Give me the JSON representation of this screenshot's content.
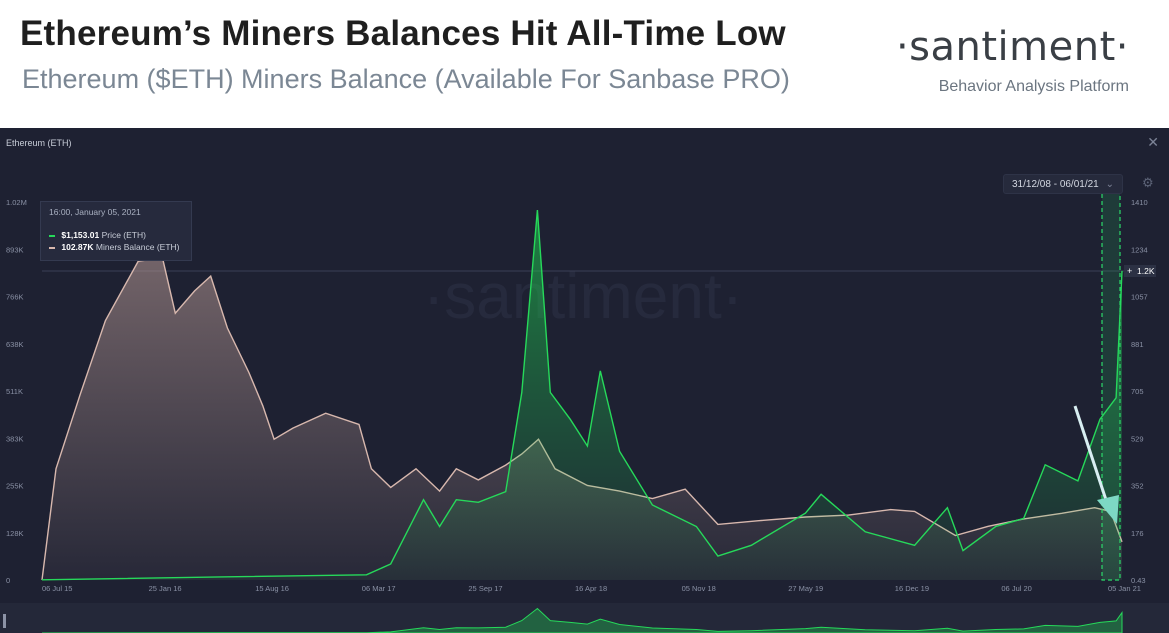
{
  "header": {
    "title": "Ethereum’s Miners Balances Hit All-Time Low",
    "subtitle": "Ethereum ($ETH) Miners Balance (Available For Sanbase PRO)",
    "brand": "·santiment·",
    "brand_tagline": "Behavior Analysis Platform"
  },
  "panel": {
    "title": "Ethereum (ETH)",
    "date_range": "31/12/08 - 06/01/21",
    "watermark": "·santiment·",
    "price_tag": "1.2K"
  },
  "tooltip": {
    "date": "16:00, January 05, 2021",
    "price_value": "$1,153.01",
    "price_label": "Price (ETH)",
    "balance_value": "102.87K",
    "balance_label": "Miners Balance (ETH)"
  },
  "colors": {
    "price": "#26d95a",
    "balance": "#d8b8ae",
    "background": "#1e2132",
    "highlight": "#2bd96a",
    "arrow": "#d8eef2"
  },
  "icons": [
    "close-icon",
    "gear-icon",
    "chevron-down-icon",
    "arrow-icon"
  ],
  "chart_data": {
    "type": "line",
    "x_ticks": [
      "06 Jul 15",
      "25 Jan 16",
      "15 Aug 16",
      "06 Mar 17",
      "25 Sep 17",
      "16 Apr 18",
      "05 Nov 18",
      "27 May 19",
      "16 Dec 19",
      "06 Jul 20",
      "05 Jan 21"
    ],
    "y_left_ticks": [
      "1.02M",
      "893K",
      "766K",
      "638K",
      "511K",
      "383K",
      "255K",
      "128K",
      "0"
    ],
    "y_left_range": [
      0,
      1020000
    ],
    "y_right_ticks": [
      "1410",
      "1234",
      "1057",
      "881",
      "705",
      "529",
      "352",
      "176",
      "0.43"
    ],
    "y_right_range": [
      0.43,
      1410
    ],
    "series": [
      {
        "name": "Miners Balance (ETH)",
        "axis": "left",
        "points": [
          [
            "2015-07-06",
            0
          ],
          [
            "2015-08-01",
            300000
          ],
          [
            "2015-09-15",
            500000
          ],
          [
            "2015-11-01",
            700000
          ],
          [
            "2016-01-01",
            860000
          ],
          [
            "2016-02-15",
            870000
          ],
          [
            "2016-03-10",
            720000
          ],
          [
            "2016-04-15",
            780000
          ],
          [
            "2016-05-15",
            820000
          ],
          [
            "2016-06-15",
            680000
          ],
          [
            "2016-07-25",
            560000
          ],
          [
            "2016-08-20",
            470000
          ],
          [
            "2016-09-10",
            380000
          ],
          [
            "2016-10-15",
            410000
          ],
          [
            "2016-12-15",
            450000
          ],
          [
            "2017-02-15",
            420000
          ],
          [
            "2017-03-10",
            300000
          ],
          [
            "2017-04-15",
            250000
          ],
          [
            "2017-06-01",
            300000
          ],
          [
            "2017-07-15",
            240000
          ],
          [
            "2017-08-15",
            300000
          ],
          [
            "2017-09-25",
            270000
          ],
          [
            "2017-11-15",
            310000
          ],
          [
            "2017-12-15",
            340000
          ],
          [
            "2018-01-15",
            380000
          ],
          [
            "2018-02-15",
            300000
          ],
          [
            "2018-04-16",
            255000
          ],
          [
            "2018-06-15",
            240000
          ],
          [
            "2018-08-15",
            220000
          ],
          [
            "2018-10-15",
            245000
          ],
          [
            "2018-12-15",
            150000
          ],
          [
            "2019-03-01",
            160000
          ],
          [
            "2019-05-27",
            170000
          ],
          [
            "2019-08-15",
            175000
          ],
          [
            "2019-11-01",
            190000
          ],
          [
            "2019-12-16",
            185000
          ],
          [
            "2020-03-01",
            120000
          ],
          [
            "2020-05-01",
            145000
          ],
          [
            "2020-07-06",
            165000
          ],
          [
            "2020-09-15",
            180000
          ],
          [
            "2020-11-15",
            195000
          ],
          [
            "2020-12-15",
            185000
          ],
          [
            "2021-01-05",
            102870
          ]
        ]
      },
      {
        "name": "Price (ETH)",
        "axis": "right",
        "points": [
          [
            "2015-07-06",
            1
          ],
          [
            "2016-06-01",
            12
          ],
          [
            "2017-03-01",
            20
          ],
          [
            "2017-04-15",
            60
          ],
          [
            "2017-06-15",
            300
          ],
          [
            "2017-07-15",
            200
          ],
          [
            "2017-08-15",
            300
          ],
          [
            "2017-09-25",
            290
          ],
          [
            "2017-11-15",
            330
          ],
          [
            "2017-12-15",
            700
          ],
          [
            "2018-01-13",
            1380
          ],
          [
            "2018-02-06",
            700
          ],
          [
            "2018-03-15",
            600
          ],
          [
            "2018-04-16",
            500
          ],
          [
            "2018-05-10",
            780
          ],
          [
            "2018-06-15",
            480
          ],
          [
            "2018-08-15",
            280
          ],
          [
            "2018-11-05",
            200
          ],
          [
            "2018-12-15",
            90
          ],
          [
            "2019-02-15",
            130
          ],
          [
            "2019-05-27",
            250
          ],
          [
            "2019-06-25",
            320
          ],
          [
            "2019-09-15",
            180
          ],
          [
            "2019-12-16",
            130
          ],
          [
            "2020-02-15",
            270
          ],
          [
            "2020-03-15",
            110
          ],
          [
            "2020-05-15",
            200
          ],
          [
            "2020-07-06",
            230
          ],
          [
            "2020-08-15",
            430
          ],
          [
            "2020-10-15",
            370
          ],
          [
            "2020-11-25",
            600
          ],
          [
            "2020-12-25",
            680
          ],
          [
            "2021-01-05",
            1153
          ]
        ]
      }
    ],
    "annotation": "highlighted range ending 05 Jan 21"
  }
}
